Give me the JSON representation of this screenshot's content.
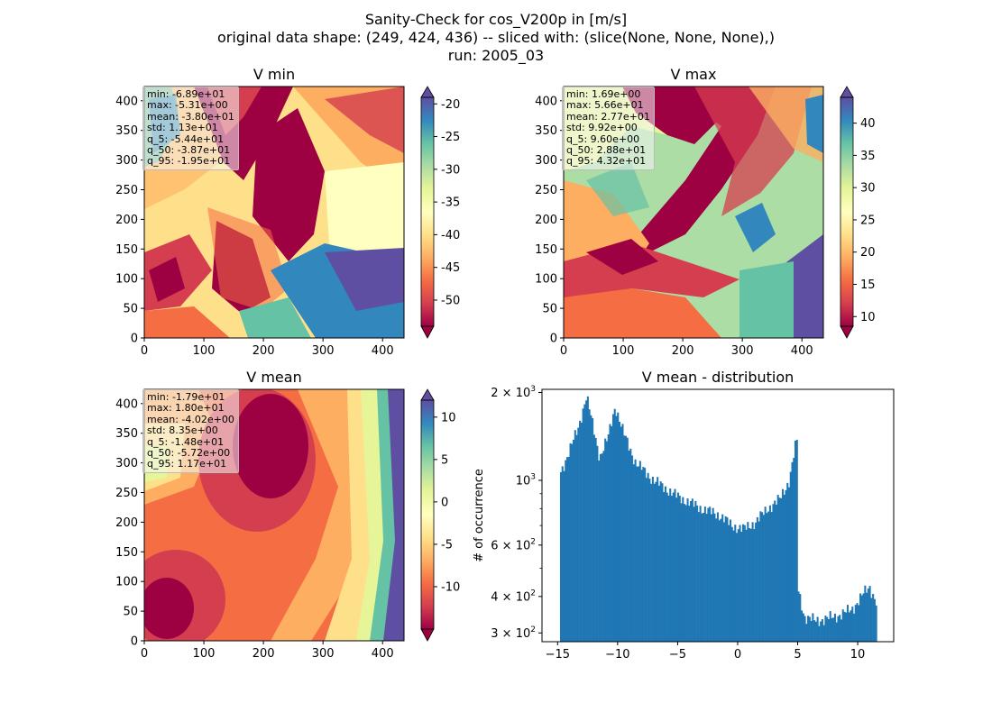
{
  "figure": {
    "title_lines": [
      "Sanity-Check for cos_V200p in [m/s]",
      "original data shape: (249, 424, 436) -- sliced with: (slice(None, None, None),)",
      "run: 2005_03"
    ]
  },
  "colormap": "Spectral",
  "chart_data": [
    {
      "type": "heatmap",
      "title": "V min",
      "xlim": [
        0,
        436
      ],
      "ylim": [
        0,
        424
      ],
      "xticks": [
        0,
        100,
        200,
        300,
        400
      ],
      "yticks": [
        0,
        50,
        100,
        150,
        200,
        250,
        300,
        350,
        400
      ],
      "color_range": [
        -54,
        -19
      ],
      "colorbar_ticks": [
        -50,
        -45,
        -40,
        -35,
        -30,
        -25,
        -20
      ],
      "colorbar_extend": "both",
      "stats": [
        "min: -6.89e+01",
        "max: -5.31e+00",
        "mean: -3.80e+01",
        "std: 1.13e+01",
        "q_5: -5.44e+01",
        "q_50: -3.87e+01",
        "q_95: -1.95e+01"
      ]
    },
    {
      "type": "heatmap",
      "title": "V max",
      "xlim": [
        0,
        436
      ],
      "ylim": [
        0,
        424
      ],
      "xticks": [
        0,
        100,
        200,
        300,
        400
      ],
      "yticks": [
        0,
        50,
        100,
        150,
        200,
        250,
        300,
        350,
        400
      ],
      "color_range": [
        8.5,
        44
      ],
      "colorbar_ticks": [
        10,
        15,
        20,
        25,
        30,
        35,
        40
      ],
      "colorbar_extend": "both",
      "stats": [
        "min: 1.69e+00",
        "max: 5.66e+01",
        "mean: 2.77e+01",
        "std: 9.92e+00",
        "q_5: 9.60e+00",
        "q_50: 2.88e+01",
        "q_95: 4.32e+01"
      ]
    },
    {
      "type": "heatmap",
      "title": "V mean",
      "xlim": [
        0,
        436
      ],
      "ylim": [
        0,
        424
      ],
      "xticks": [
        0,
        100,
        200,
        300,
        400
      ],
      "yticks": [
        0,
        50,
        100,
        150,
        200,
        250,
        300,
        350,
        400
      ],
      "color_range": [
        -15,
        12
      ],
      "colorbar_ticks": [
        -10,
        -5,
        0,
        5,
        10
      ],
      "colorbar_extend": "both",
      "stats": [
        "min: -1.79e+01",
        "max: 1.80e+01",
        "mean: -4.02e+00",
        "std: 8.35e+00",
        "q_5: -1.48e+01",
        "q_50: -5.72e+00",
        "q_95: 1.17e+01"
      ]
    },
    {
      "type": "bar",
      "title": "V mean - distribution",
      "ylabel": "# of occurrence",
      "yscale": "log",
      "xlim": [
        -16.3,
        13
      ],
      "ylim": [
        280,
        2050
      ],
      "xticks": [
        -15,
        -10,
        -5,
        0,
        5,
        10
      ],
      "yticks": [
        {
          "value": 300,
          "label": "3 × 10",
          "exp": "2"
        },
        {
          "value": 400,
          "label": "4 × 10",
          "exp": "2"
        },
        {
          "value": 600,
          "label": "6 × 10",
          "exp": "2"
        },
        {
          "value": 1000,
          "label": "10",
          "exp": "3"
        },
        {
          "value": 2000,
          "label": "2 × 10",
          "exp": "3"
        }
      ],
      "bar_color": "#1f77b4",
      "x": [
        -14.8,
        -13.3,
        -12.6,
        -11.5,
        -10.8,
        -10.2,
        -9.5,
        -8.5,
        -7.0,
        -5.0,
        -3.0,
        -1.5,
        -0.5,
        0.5,
        1.5,
        2.5,
        3.5,
        4.3,
        4.8,
        5.0,
        5.2,
        5.6,
        6.5,
        8.0,
        9.5,
        10.5,
        11.0,
        11.6
      ],
      "values": [
        1050,
        1500,
        1950,
        1200,
        1400,
        1800,
        1450,
        1150,
        1000,
        880,
        800,
        760,
        700,
        680,
        720,
        800,
        860,
        1000,
        1300,
        1400,
        390,
        340,
        330,
        340,
        360,
        410,
        430,
        380
      ]
    }
  ]
}
